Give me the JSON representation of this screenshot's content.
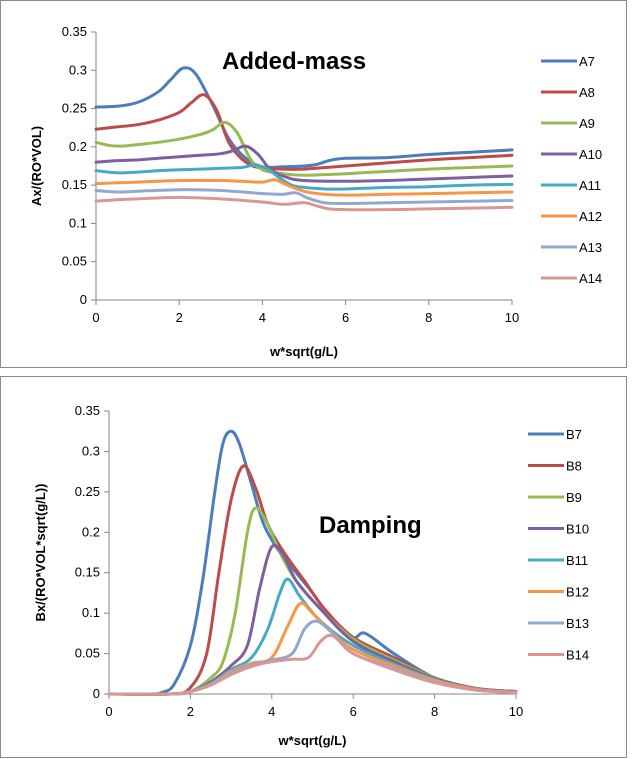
{
  "chart_data": [
    {
      "type": "line",
      "title": "Added-mass",
      "xlabel": "w*sqrt(g/L)",
      "ylabel": "Ax/(RO*VOL)",
      "xlim": [
        0,
        10
      ],
      "ylim": [
        0,
        0.35
      ],
      "xticks": [
        "0",
        "2",
        "4",
        "6",
        "8",
        "10"
      ],
      "yticks": [
        "0",
        "0.05",
        "0.1",
        "0.15",
        "0.2",
        "0.25",
        "0.3",
        "0.35"
      ],
      "grid": false,
      "legend": "right",
      "series": [
        {
          "name": "A7",
          "color": "#4a7ebb",
          "x": [
            0,
            0.5,
            1,
            1.5,
            1.8,
            2.1,
            2.4,
            2.8,
            3.2,
            3.6,
            4,
            4.5,
            5,
            5.3,
            5.6,
            6,
            7,
            8,
            9,
            10
          ],
          "y": [
            0.252,
            0.253,
            0.258,
            0.272,
            0.288,
            0.303,
            0.295,
            0.255,
            0.21,
            0.185,
            0.174,
            0.174,
            0.175,
            0.177,
            0.182,
            0.185,
            0.186,
            0.19,
            0.193,
            0.196
          ]
        },
        {
          "name": "A8",
          "color": "#be4b48",
          "x": [
            0,
            0.5,
            1,
            1.5,
            2,
            2.3,
            2.6,
            2.9,
            3.2,
            3.6,
            4,
            4.5,
            5,
            6,
            7,
            8,
            9,
            10
          ],
          "y": [
            0.223,
            0.226,
            0.229,
            0.235,
            0.245,
            0.258,
            0.268,
            0.248,
            0.205,
            0.18,
            0.172,
            0.171,
            0.171,
            0.175,
            0.179,
            0.183,
            0.186,
            0.189
          ]
        },
        {
          "name": "A9",
          "color": "#98b954",
          "x": [
            0,
            0.3,
            0.6,
            1,
            1.5,
            2,
            2.5,
            2.8,
            3.1,
            3.4,
            3.7,
            4,
            4.5,
            5,
            6,
            7,
            8,
            9,
            10
          ],
          "y": [
            0.206,
            0.202,
            0.201,
            0.203,
            0.206,
            0.21,
            0.216,
            0.222,
            0.232,
            0.218,
            0.185,
            0.17,
            0.165,
            0.163,
            0.165,
            0.168,
            0.171,
            0.173,
            0.175
          ]
        },
        {
          "name": "A10",
          "color": "#7d60a0",
          "x": [
            0,
            0.5,
            1,
            1.5,
            2,
            2.5,
            3,
            3.3,
            3.6,
            3.9,
            4.2,
            4.6,
            5,
            6,
            7,
            8,
            9,
            10
          ],
          "y": [
            0.18,
            0.182,
            0.183,
            0.185,
            0.187,
            0.189,
            0.191,
            0.195,
            0.201,
            0.19,
            0.17,
            0.16,
            0.156,
            0.155,
            0.156,
            0.158,
            0.16,
            0.162
          ]
        },
        {
          "name": "A11",
          "color": "#46aac5",
          "x": [
            0,
            0.3,
            0.6,
            1,
            1.5,
            2,
            2.5,
            3,
            3.5,
            3.8,
            4.1,
            4.4,
            4.7,
            5,
            5.5,
            6,
            7,
            8,
            9,
            10
          ],
          "y": [
            0.169,
            0.167,
            0.166,
            0.167,
            0.169,
            0.17,
            0.171,
            0.172,
            0.173,
            0.176,
            0.172,
            0.16,
            0.15,
            0.147,
            0.145,
            0.145,
            0.147,
            0.148,
            0.15,
            0.151
          ]
        },
        {
          "name": "A12",
          "color": "#f79646",
          "x": [
            0,
            0.5,
            1,
            2,
            3,
            3.5,
            4,
            4.3,
            4.6,
            5,
            5.5,
            6,
            7,
            8,
            9,
            10
          ],
          "y": [
            0.152,
            0.153,
            0.154,
            0.156,
            0.156,
            0.155,
            0.154,
            0.157,
            0.15,
            0.142,
            0.138,
            0.137,
            0.138,
            0.139,
            0.14,
            0.141
          ]
        },
        {
          "name": "A13",
          "color": "#92a9cf",
          "x": [
            0,
            0.5,
            1,
            2,
            3,
            4,
            4.5,
            4.8,
            5.1,
            5.5,
            6,
            7,
            8,
            9,
            10
          ],
          "y": [
            0.143,
            0.141,
            0.142,
            0.144,
            0.143,
            0.139,
            0.138,
            0.14,
            0.133,
            0.127,
            0.126,
            0.127,
            0.128,
            0.129,
            0.13
          ]
        },
        {
          "name": "A14",
          "color": "#d99694",
          "x": [
            0,
            0.5,
            1,
            2,
            3,
            4,
            4.5,
            5,
            5.3,
            5.6,
            6,
            7,
            8,
            9,
            10
          ],
          "y": [
            0.129,
            0.131,
            0.132,
            0.134,
            0.132,
            0.128,
            0.125,
            0.127,
            0.123,
            0.119,
            0.118,
            0.118,
            0.119,
            0.12,
            0.121
          ]
        }
      ]
    },
    {
      "type": "line",
      "title": "Damping",
      "xlabel": "w*sqrt(g/L)",
      "ylabel": "Bx/(RO*VOL*sqrt(g/L))",
      "xlim": [
        0,
        10
      ],
      "ylim": [
        0,
        0.35
      ],
      "xticks": [
        "0",
        "2",
        "4",
        "6",
        "8",
        "10"
      ],
      "yticks": [
        "0",
        "0.05",
        "0.1",
        "0.15",
        "0.2",
        "0.25",
        "0.3",
        "0.35"
      ],
      "grid": false,
      "legend": "right",
      "series": [
        {
          "name": "B7",
          "color": "#4a7ebb",
          "x": [
            0,
            1,
            1.3,
            1.6,
            2,
            2.3,
            2.6,
            2.8,
            3,
            3.2,
            3.5,
            3.8,
            4.2,
            4.6,
            5,
            5.5,
            6,
            6.3,
            7,
            8,
            9,
            10
          ],
          "y": [
            0,
            0,
            0.002,
            0.012,
            0.06,
            0.14,
            0.25,
            0.31,
            0.325,
            0.31,
            0.26,
            0.21,
            0.175,
            0.15,
            0.125,
            0.09,
            0.07,
            0.075,
            0.05,
            0.02,
            0.007,
            0.003
          ]
        },
        {
          "name": "B8",
          "color": "#be4b48",
          "x": [
            0,
            1.5,
            2,
            2.4,
            2.7,
            3,
            3.3,
            3.6,
            3.9,
            4.3,
            4.8,
            5.3,
            6,
            7,
            8,
            9,
            10
          ],
          "y": [
            0,
            0,
            0.008,
            0.05,
            0.15,
            0.24,
            0.282,
            0.255,
            0.21,
            0.175,
            0.14,
            0.105,
            0.07,
            0.045,
            0.02,
            0.007,
            0.003
          ]
        },
        {
          "name": "B9",
          "color": "#98b954",
          "x": [
            0,
            1.5,
            2,
            2.5,
            2.8,
            3.1,
            3.4,
            3.6,
            3.9,
            4.2,
            4.6,
            5.2,
            6,
            7,
            8,
            9,
            10
          ],
          "y": [
            0,
            0,
            0.003,
            0.02,
            0.04,
            0.1,
            0.2,
            0.23,
            0.21,
            0.175,
            0.14,
            0.105,
            0.068,
            0.042,
            0.02,
            0.007,
            0.003
          ]
        },
        {
          "name": "B10",
          "color": "#7d60a0",
          "x": [
            0,
            1.5,
            2,
            2.5,
            3,
            3.4,
            3.7,
            4,
            4.3,
            4.6,
            5.2,
            6,
            7,
            8,
            9,
            10
          ],
          "y": [
            0,
            0,
            0.003,
            0.015,
            0.035,
            0.06,
            0.13,
            0.182,
            0.17,
            0.14,
            0.105,
            0.065,
            0.04,
            0.019,
            0.007,
            0.003
          ]
        },
        {
          "name": "B11",
          "color": "#46aac5",
          "x": [
            0,
            1.5,
            2,
            2.5,
            3,
            3.5,
            3.9,
            4.2,
            4.4,
            4.7,
            5.2,
            6,
            7,
            8,
            9,
            10
          ],
          "y": [
            0,
            0,
            0.003,
            0.013,
            0.03,
            0.045,
            0.08,
            0.125,
            0.142,
            0.12,
            0.09,
            0.06,
            0.037,
            0.018,
            0.006,
            0.002
          ]
        },
        {
          "name": "B12",
          "color": "#f79646",
          "x": [
            0,
            1.5,
            2,
            2.5,
            3,
            3.5,
            4,
            4.4,
            4.7,
            5,
            5.4,
            6,
            7,
            8,
            9,
            10
          ],
          "y": [
            0,
            0,
            0.003,
            0.012,
            0.028,
            0.038,
            0.045,
            0.085,
            0.112,
            0.1,
            0.08,
            0.055,
            0.035,
            0.017,
            0.006,
            0.002
          ]
        },
        {
          "name": "B13",
          "color": "#92a9cf",
          "x": [
            0,
            1.5,
            2,
            2.5,
            3,
            3.5,
            4,
            4.5,
            4.8,
            5.1,
            5.5,
            6,
            7,
            8,
            9,
            10
          ],
          "y": [
            0,
            0,
            0.003,
            0.012,
            0.026,
            0.036,
            0.042,
            0.05,
            0.08,
            0.09,
            0.075,
            0.05,
            0.032,
            0.015,
            0.005,
            0.002
          ]
        },
        {
          "name": "B14",
          "color": "#d99694",
          "x": [
            0,
            1.5,
            2,
            2.5,
            3,
            3.5,
            4,
            4.5,
            4.9,
            5.2,
            5.5,
            6,
            7,
            8,
            9,
            10
          ],
          "y": [
            0,
            0,
            0.003,
            0.011,
            0.024,
            0.034,
            0.04,
            0.043,
            0.045,
            0.065,
            0.072,
            0.05,
            0.03,
            0.014,
            0.005,
            0.002
          ]
        }
      ]
    }
  ]
}
